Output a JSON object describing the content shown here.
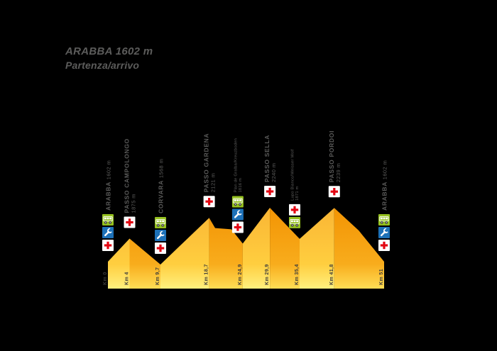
{
  "title": {
    "line1": "ARABBA 1602 m",
    "line2": "Partenza/arrivo"
  },
  "colors": {
    "background": "#000000",
    "text_gray": "#5c5c5b",
    "km_text": "#3c3c3b",
    "cross_red": "#e30613",
    "cross_bg": "#ffffff",
    "wrench_blue": "#1d71b8",
    "bus_green": "#95c11f",
    "wheel_dark": "#3c3c3b",
    "gradient_light": [
      "#F9B233",
      "#FFCE3F",
      "#FFF07E"
    ],
    "gradient_dark": [
      "#F29100",
      "#F8AC1C",
      "#FFDD55"
    ]
  },
  "chart_data": {
    "type": "area",
    "title": "ARABBA 1602 m",
    "subtitle": "Partenza/arrivo",
    "xlabel": "Km",
    "ylabel": "m",
    "x_range_km": [
      0,
      51
    ],
    "grid": false,
    "legend": "none",
    "waypoints": [
      {
        "name": "ARABBA",
        "elevation": "1602 m",
        "elev_m": 1602,
        "km": 0,
        "km_label": "Km 0",
        "label_layout": "inline",
        "icons": [
          "bus",
          "wrench",
          "cross"
        ]
      },
      {
        "name": "PASSO CAMPOLONGO",
        "elevation": "1875 m",
        "elev_m": 1875,
        "km": 4,
        "km_label": "Km 4",
        "label_layout": "stacked",
        "icons": [
          "cross"
        ]
      },
      {
        "name": "CORVARA",
        "elevation": "1568 m",
        "elev_m": 1568,
        "km": 9.7,
        "km_label": "Km 9,7",
        "label_layout": "inline",
        "icons": [
          "bus",
          "wrench",
          "cross"
        ]
      },
      {
        "name": "PASSO GARDENA",
        "elevation": "2121 m",
        "elev_m": 2121,
        "km": 18.7,
        "km_label": "Km 18,7",
        "label_layout": "stacked",
        "icons": [
          "cross"
        ]
      },
      {
        "name": "Plan de Gralba/Kreuzboden",
        "elevation": "1816 m",
        "elev_m": 1816,
        "km": 24.9,
        "km_label": "Km 24,9",
        "label_layout": "small",
        "icons": [
          "bus",
          "wrench",
          "cross"
        ]
      },
      {
        "name": "PASSO SELLA",
        "elevation": "2240 m",
        "elev_m": 2240,
        "km": 29.9,
        "km_label": "Km 29,9",
        "label_layout": "stacked",
        "icons": [
          "cross"
        ]
      },
      {
        "name": "Lupo Bianco/Weisser Wolf",
        "elevation": "1871 m",
        "elev_m": 1871,
        "km": 35.4,
        "km_label": "Km 35,4",
        "label_layout": "small",
        "icons": [
          "cross",
          "bus"
        ]
      },
      {
        "name": "PASSO PORDOI",
        "elevation": "2239 m",
        "elev_m": 2239,
        "km": 41.8,
        "km_label": "Km 41,8",
        "label_layout": "stacked",
        "icons": [
          "cross"
        ]
      },
      {
        "name": "ARABBA",
        "elevation": "1602 m",
        "elev_m": 1602,
        "km": 51,
        "km_label": "Km 51",
        "label_layout": "inline",
        "icons": [
          "bus",
          "wrench",
          "cross"
        ]
      }
    ],
    "profile_points_km_elev": [
      [
        0,
        1602
      ],
      [
        4,
        1875
      ],
      [
        9.7,
        1568
      ],
      [
        18.7,
        2121
      ],
      [
        19.8,
        2000
      ],
      [
        22.8,
        1985
      ],
      [
        24.9,
        1816
      ],
      [
        29.9,
        2240
      ],
      [
        35.4,
        1871
      ],
      [
        41.8,
        2239
      ],
      [
        46.3,
        1971
      ],
      [
        51,
        1602
      ]
    ]
  }
}
